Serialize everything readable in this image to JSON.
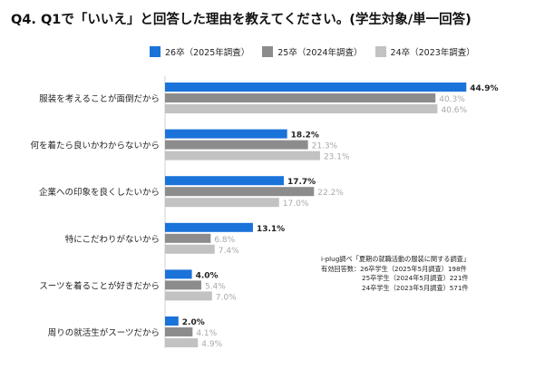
{
  "title": "Q4. Q1で「いいえ」と回答した理由を教えてください。(学生対象/単一回答)",
  "note": {
    "line1": "i-plug調べ「夏期の就職活動の服装に関する調査」",
    "line2": "有効回答数：26卒学生（2025年5月調査）198件",
    "line3": "25卒学生（2024年5月調査）221件",
    "line4": "24卒学生（2023年5月調査）571件"
  },
  "chart_data": {
    "type": "bar",
    "orientation": "horizontal",
    "title": "Q4. Q1で「いいえ」と回答した理由を教えてください。(学生対象/単一回答)",
    "categories": [
      "服装を考えることが面倒だから",
      "何を着たら良いかわからないから",
      "企業への印象を良くしたいから",
      "特にこだわりがないから",
      "スーツを着ることが好きだから",
      "周りの就活生がスーツだから"
    ],
    "series": [
      {
        "name": "26卒（2025年調査）",
        "color": "#1a73d9",
        "label_color": "#222222",
        "values": [
          44.9,
          18.2,
          17.7,
          13.1,
          4.0,
          2.0
        ]
      },
      {
        "name": "25卒（2024年調査）",
        "color": "#8c8c8c",
        "label_color": "#a8a8a8",
        "values": [
          40.3,
          21.3,
          22.2,
          6.8,
          5.4,
          4.1
        ]
      },
      {
        "name": "24卒（2023年調査）",
        "color": "#c2c2c2",
        "label_color": "#a8a8a8",
        "values": [
          40.6,
          23.1,
          17.0,
          7.4,
          7.0,
          4.9
        ]
      }
    ],
    "value_suffix": "%",
    "xlim": [
      0,
      50
    ],
    "grid": false,
    "legend_position": "top"
  }
}
